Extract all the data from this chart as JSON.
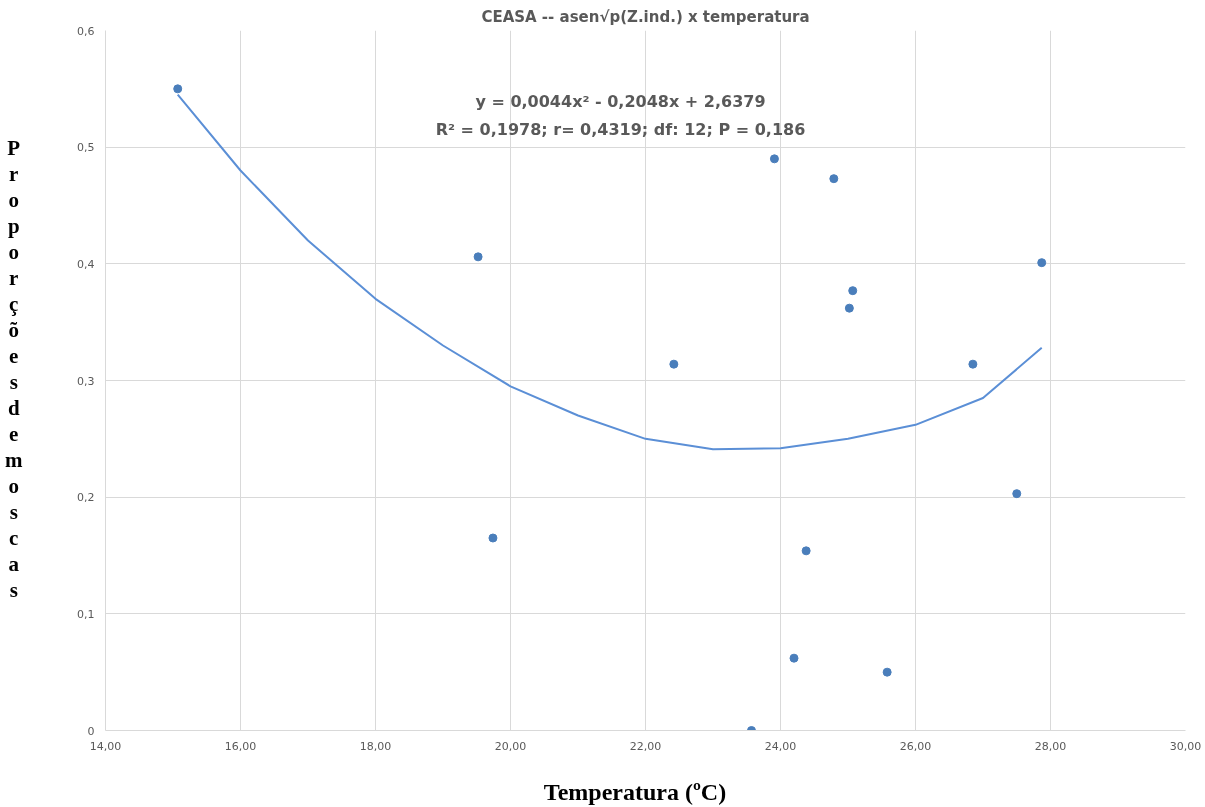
{
  "chart_data": {
    "type": "scatter",
    "title": "CEASA -- asen√p(Z.ind.) x temperatura",
    "xlabel": "Temperatura (ºC)",
    "ylabel": "Proporções de moscas",
    "annotations": [
      "y = 0,0044x² - 0,2048x + 2,6379",
      "R² = 0,1978; r= 0,4319; df: 12; P = 0,186"
    ],
    "series": [
      {
        "color": "#4a7ebb",
        "marker": "circle",
        "x": [
          15.07,
          19.52,
          19.74,
          22.42,
          23.91,
          23.57,
          24.2,
          24.38,
          24.79,
          25.02,
          25.07,
          25.58,
          26.85,
          27.5,
          27.87
        ],
        "values": [
          0.55,
          0.406,
          0.165,
          0.314,
          0.49,
          0.0,
          0.062,
          0.154,
          0.473,
          0.362,
          0.377,
          0.05,
          0.314,
          0.203,
          0.401
        ]
      },
      {
        "type": "line",
        "color": "#5b8fd6",
        "marker": "none",
        "x": [
          15.07,
          16,
          17,
          18,
          19,
          20,
          21,
          22,
          23,
          24,
          25,
          26,
          27,
          27.87
        ],
        "values": [
          0.545,
          0.48,
          0.42,
          0.37,
          0.33,
          0.295,
          0.27,
          0.25,
          0.241,
          0.242,
          0.25,
          0.262,
          0.285,
          0.328
        ]
      }
    ],
    "xlim": [
      14,
      30
    ],
    "xticks": [
      {
        "value": 14,
        "label": "14,00"
      },
      {
        "value": 16,
        "label": "16,00"
      },
      {
        "value": 18,
        "label": "18,00"
      },
      {
        "value": 20,
        "label": "20,00"
      },
      {
        "value": 22,
        "label": "22,00"
      },
      {
        "value": 24,
        "label": "24,00"
      },
      {
        "value": 26,
        "label": "26,00"
      },
      {
        "value": 28,
        "label": "28,00"
      },
      {
        "value": 30,
        "label": "30,00"
      }
    ],
    "ylim": [
      0,
      0.6
    ],
    "yticks": [
      0,
      {
        "value": 0.1,
        "label": "0,1"
      },
      {
        "value": 0.2,
        "label": "0,2"
      },
      {
        "value": 0.3,
        "label": "0,3"
      },
      {
        "value": 0.4,
        "label": "0,4"
      },
      {
        "value": 0.5,
        "label": "0,5"
      },
      {
        "value": 0.6,
        "label": "0,6"
      }
    ],
    "grid": true
  }
}
